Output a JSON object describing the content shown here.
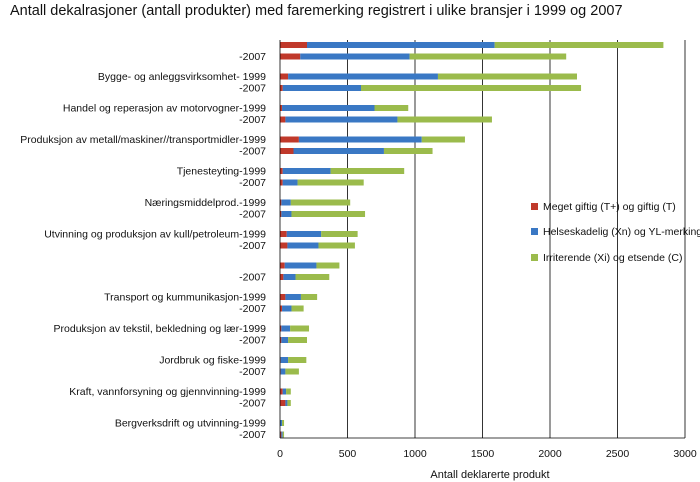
{
  "chart_data": {
    "type": "bar",
    "orientation": "horizontal",
    "stacked": true,
    "title": "Antall  dekalrasjoner (antall produkter) med faremerking registrert i ulike bransjer i 1999 og 2007",
    "xlabel": "Antall deklarerte produkt",
    "ylabel": "",
    "xlim": [
      0,
      3000
    ],
    "xticks": [
      0,
      500,
      1000,
      1500,
      2000,
      2500,
      3000
    ],
    "grid": "vertical",
    "legend_position": "right",
    "series": [
      {
        "name": "Meget giftig (T+) og giftig (T)",
        "color": "#c0392b"
      },
      {
        "name": "Helseskadelig (Xn) og YL-merking",
        "color": "#3a78c4"
      },
      {
        "name": "Irriterende (Xi) og etsende (C)",
        "color": "#9bbb4c"
      }
    ],
    "bars": [
      {
        "label": "",
        "values": [
          200,
          1390,
          1250
        ]
      },
      {
        "label": "-2007",
        "values": [
          150,
          810,
          1160
        ]
      },
      {
        "label": "Bygge- og anleggsvirksomhet- 1999",
        "values": [
          60,
          1110,
          1030
        ]
      },
      {
        "label": "-2007",
        "values": [
          20,
          580,
          1630
        ]
      },
      {
        "label": "Handel og reperasjon av motorvogner-1999",
        "values": [
          15,
          685,
          250
        ]
      },
      {
        "label": "-2007",
        "values": [
          40,
          830,
          700
        ]
      },
      {
        "label": "Produksjon av metall/maskiner//transportmidler-1999",
        "values": [
          140,
          910,
          320
        ]
      },
      {
        "label": "-2007",
        "values": [
          100,
          670,
          360
        ]
      },
      {
        "label": "Tjenesteyting-1999",
        "values": [
          20,
          355,
          545
        ]
      },
      {
        "label": "-2007",
        "values": [
          20,
          110,
          490
        ]
      },
      {
        "label": "Næringsmiddelprod.-1999",
        "values": [
          10,
          70,
          440
        ]
      },
      {
        "label": "-2007",
        "values": [
          10,
          75,
          545
        ]
      },
      {
        "label": "Utvinning og produksjon av kull/petroleum-1999",
        "values": [
          50,
          255,
          270
        ]
      },
      {
        "label": "-2007",
        "values": [
          55,
          230,
          270
        ]
      },
      {
        "label": "",
        "values": [
          35,
          235,
          170
        ]
      },
      {
        "label": "-2007",
        "values": [
          25,
          90,
          250
        ]
      },
      {
        "label": "Transport og kummunikasjon-1999",
        "values": [
          40,
          115,
          120
        ]
      },
      {
        "label": "-2007",
        "values": [
          15,
          70,
          90
        ]
      },
      {
        "label": "Produksjon av tekstil, bekledning og lær-1999",
        "values": [
          10,
          65,
          140
        ]
      },
      {
        "label": "-2007",
        "values": [
          10,
          50,
          140
        ]
      },
      {
        "label": "Jordbruk og fiske-1999",
        "values": [
          5,
          55,
          135
        ]
      },
      {
        "label": "-2007",
        "values": [
          5,
          35,
          100
        ]
      },
      {
        "label": "Kraft, vannforsyning og gjennvinning-1999",
        "values": [
          20,
          25,
          35
        ]
      },
      {
        "label": "-2007",
        "values": [
          40,
          15,
          25
        ]
      },
      {
        "label": "Bergverksdrift og utvinning-1999",
        "values": [
          0,
          15,
          15
        ]
      },
      {
        "label": "-2007",
        "values": [
          10,
          10,
          10
        ]
      }
    ]
  }
}
